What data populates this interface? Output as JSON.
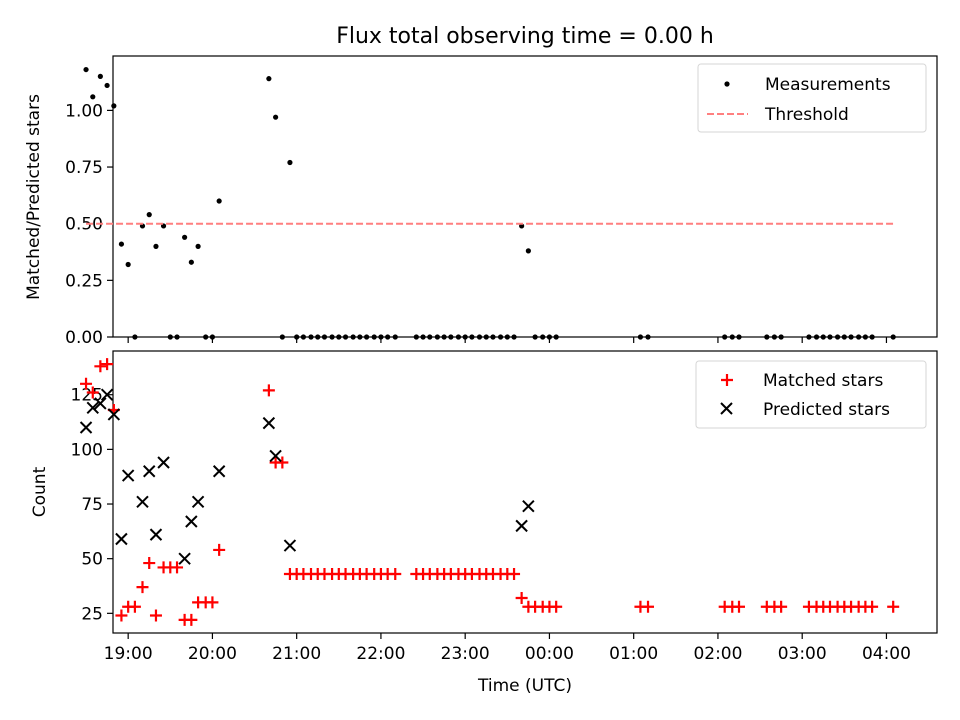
{
  "figure": {
    "title": "Flux total observing time = 0.00 h",
    "xlabel": "Time (UTC)"
  },
  "chart_data": [
    {
      "type": "scatter",
      "ylabel": "Matched/Predicted stars",
      "ylim": [
        0,
        1.24
      ],
      "yticks": [
        "0.00",
        "0.25",
        "0.50",
        "0.75",
        "1.00"
      ],
      "ytick_values": [
        0,
        0.25,
        0.5,
        0.75,
        1.0
      ],
      "x_unit": "hours after 18:00 UTC",
      "xlim": [
        0.82,
        10.6
      ],
      "x_ticks_shown": false,
      "legend": "top-right",
      "series": [
        {
          "name": "Measurements",
          "kind": "dot",
          "color": "#000000",
          "x": [
            0.5,
            0.58,
            0.67,
            0.75,
            0.83,
            0.92,
            1.0,
            1.08,
            1.17,
            1.25,
            1.33,
            1.42,
            1.5,
            1.58,
            1.67,
            1.75,
            1.83,
            1.92,
            2.0,
            2.08,
            2.67,
            2.75,
            2.83,
            2.92,
            3.0,
            3.08,
            3.17,
            3.25,
            3.33,
            3.42,
            3.5,
            3.58,
            3.67,
            3.75,
            3.83,
            3.92,
            4.0,
            4.08,
            4.17,
            4.42,
            4.5,
            4.58,
            4.67,
            4.75,
            4.83,
            4.92,
            5.0,
            5.08,
            5.17,
            5.25,
            5.33,
            5.42,
            5.5,
            5.58,
            5.67,
            5.75,
            5.83,
            5.92,
            6.0,
            6.08,
            7.08,
            7.17,
            8.08,
            8.17,
            8.25,
            8.58,
            8.67,
            8.75,
            9.08,
            9.17,
            9.25,
            9.33,
            9.42,
            9.5,
            9.58,
            9.67,
            9.75,
            9.83,
            10.08
          ],
          "y": [
            1.18,
            1.06,
            1.15,
            1.11,
            1.02,
            0.41,
            0.32,
            0.0,
            0.49,
            0.54,
            0.4,
            0.49,
            0.0,
            0.0,
            0.44,
            0.33,
            0.4,
            0.0,
            0.0,
            0.6,
            1.14,
            0.97,
            0.0,
            0.77,
            0,
            0,
            0,
            0,
            0,
            0,
            0,
            0,
            0,
            0,
            0,
            0,
            0,
            0,
            0,
            0,
            0,
            0,
            0,
            0,
            0,
            0,
            0,
            0,
            0,
            0,
            0,
            0,
            0,
            0,
            0.49,
            0.38,
            0,
            0,
            0,
            0,
            0,
            0,
            0,
            0,
            0,
            0,
            0,
            0,
            0,
            0,
            0,
            0,
            0,
            0,
            0,
            0,
            0,
            0,
            0
          ]
        },
        {
          "name": "Threshold",
          "kind": "dashed-line",
          "color": "#ff7f7f",
          "x": [
            0.5,
            10.08
          ],
          "y": [
            0.5,
            0.5
          ]
        }
      ]
    },
    {
      "type": "scatter",
      "ylabel": "Count",
      "ylim": [
        16,
        145
      ],
      "yticks": [
        "25",
        "50",
        "75",
        "100",
        "125"
      ],
      "ytick_values": [
        25,
        50,
        75,
        100,
        125
      ],
      "x_unit": "hours after 18:00 UTC",
      "xlim": [
        0.82,
        10.6
      ],
      "xticks": [
        "19:00",
        "20:00",
        "21:00",
        "22:00",
        "23:00",
        "00:00",
        "01:00",
        "02:00",
        "03:00",
        "04:00"
      ],
      "xtick_values": [
        1,
        2,
        3,
        4,
        5,
        6,
        7,
        8,
        9,
        10
      ],
      "legend": "top-right",
      "series": [
        {
          "name": "Matched stars",
          "kind": "plus",
          "color": "#ff0000",
          "x": [
            0.5,
            0.58,
            0.67,
            0.75,
            0.83,
            0.92,
            1.0,
            1.08,
            1.17,
            1.25,
            1.33,
            1.42,
            1.5,
            1.58,
            1.67,
            1.75,
            1.83,
            1.92,
            2.0,
            2.08,
            2.67,
            2.75,
            2.83,
            2.92,
            3.0,
            3.08,
            3.17,
            3.25,
            3.33,
            3.42,
            3.5,
            3.58,
            3.67,
            3.75,
            3.83,
            3.92,
            4.0,
            4.08,
            4.17,
            4.42,
            4.5,
            4.58,
            4.67,
            4.75,
            4.83,
            4.92,
            5.0,
            5.08,
            5.17,
            5.25,
            5.33,
            5.42,
            5.5,
            5.58,
            5.67,
            5.75,
            5.83,
            5.92,
            6.0,
            6.08,
            7.08,
            7.17,
            8.08,
            8.17,
            8.25,
            8.58,
            8.67,
            8.75,
            9.08,
            9.17,
            9.25,
            9.33,
            9.42,
            9.5,
            9.58,
            9.67,
            9.75,
            9.83,
            10.08
          ],
          "y": [
            130,
            126,
            138,
            139,
            118,
            24,
            28,
            28,
            37,
            48,
            24,
            46,
            46,
            46,
            22,
            22,
            30,
            30,
            30,
            54,
            127,
            94,
            94,
            43,
            43,
            43,
            43,
            43,
            43,
            43,
            43,
            43,
            43,
            43,
            43,
            43,
            43,
            43,
            43,
            43,
            43,
            43,
            43,
            43,
            43,
            43,
            43,
            43,
            43,
            43,
            43,
            43,
            43,
            43,
            32,
            28,
            28,
            28,
            28,
            28,
            28,
            28,
            28,
            28,
            28,
            28,
            28,
            28,
            28,
            28,
            28,
            28,
            28,
            28,
            28,
            28,
            28,
            28,
            28
          ]
        },
        {
          "name": "Predicted stars",
          "kind": "x",
          "color": "#000000",
          "x": [
            0.5,
            0.58,
            0.67,
            0.75,
            0.83,
            0.92,
            1.0,
            1.17,
            1.25,
            1.33,
            1.42,
            1.67,
            1.75,
            1.83,
            2.08,
            2.67,
            2.75,
            2.92,
            5.67,
            5.75
          ],
          "y": [
            110,
            119,
            121,
            125,
            116,
            59,
            88,
            76,
            90,
            61,
            94,
            50,
            67,
            76,
            90,
            112,
            97,
            56,
            65,
            74
          ]
        }
      ]
    }
  ]
}
